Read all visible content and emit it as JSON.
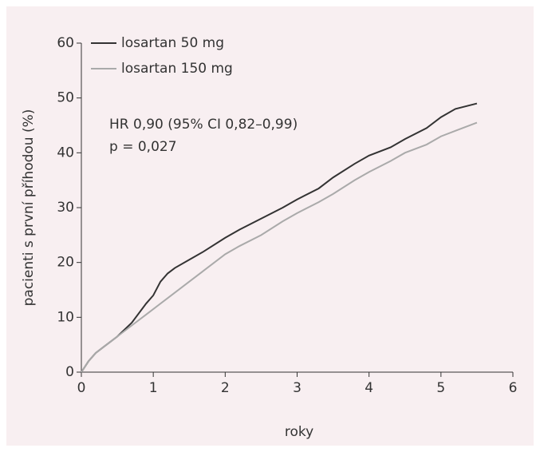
{
  "chart_data": {
    "type": "line",
    "xlabel": "roky",
    "ylabel": "pacienti s první příhodou (%)",
    "annotations": [
      "HR 0,90 (95% CI 0,82–0,99)",
      "p = 0,027"
    ],
    "xlim": [
      0,
      6
    ],
    "xticks": [
      0,
      1,
      2,
      3,
      4,
      5,
      6
    ],
    "ylim": [
      0,
      60
    ],
    "yticks": [
      0,
      10,
      20,
      30,
      40,
      50,
      60
    ],
    "legend": "upper-left",
    "series": [
      {
        "name": "losartan 50 mg",
        "color": "#333333",
        "x": [
          0,
          0.1,
          0.2,
          0.3,
          0.5,
          0.7,
          0.9,
          1,
          1.1,
          1.2,
          1.3,
          1.5,
          1.7,
          2,
          2.2,
          2.5,
          2.8,
          3,
          3.3,
          3.5,
          3.8,
          4,
          4.3,
          4.5,
          4.8,
          5,
          5.2,
          5.5
        ],
        "values": [
          0,
          2,
          3.5,
          4.5,
          6.5,
          9,
          12.5,
          14,
          16.5,
          18,
          19,
          20.5,
          22,
          24.5,
          26,
          28,
          30,
          31.5,
          33.5,
          35.5,
          38,
          39.5,
          41,
          42.5,
          44.5,
          46.5,
          48,
          49
        ]
      },
      {
        "name": "losartan 150 mg",
        "color": "#aaaaaa",
        "x": [
          0,
          0.1,
          0.2,
          0.3,
          0.5,
          0.7,
          0.9,
          1,
          1.2,
          1.5,
          1.7,
          2,
          2.2,
          2.5,
          2.8,
          3,
          3.3,
          3.5,
          3.8,
          4,
          4.3,
          4.5,
          4.8,
          5,
          5.2,
          5.5
        ],
        "values": [
          0,
          2,
          3.5,
          4.5,
          6.5,
          8.5,
          10.5,
          11.5,
          13.5,
          16.5,
          18.5,
          21.5,
          23,
          25,
          27.5,
          29,
          31,
          32.5,
          35,
          36.5,
          38.5,
          40,
          41.5,
          43,
          44,
          45.5
        ]
      }
    ]
  }
}
